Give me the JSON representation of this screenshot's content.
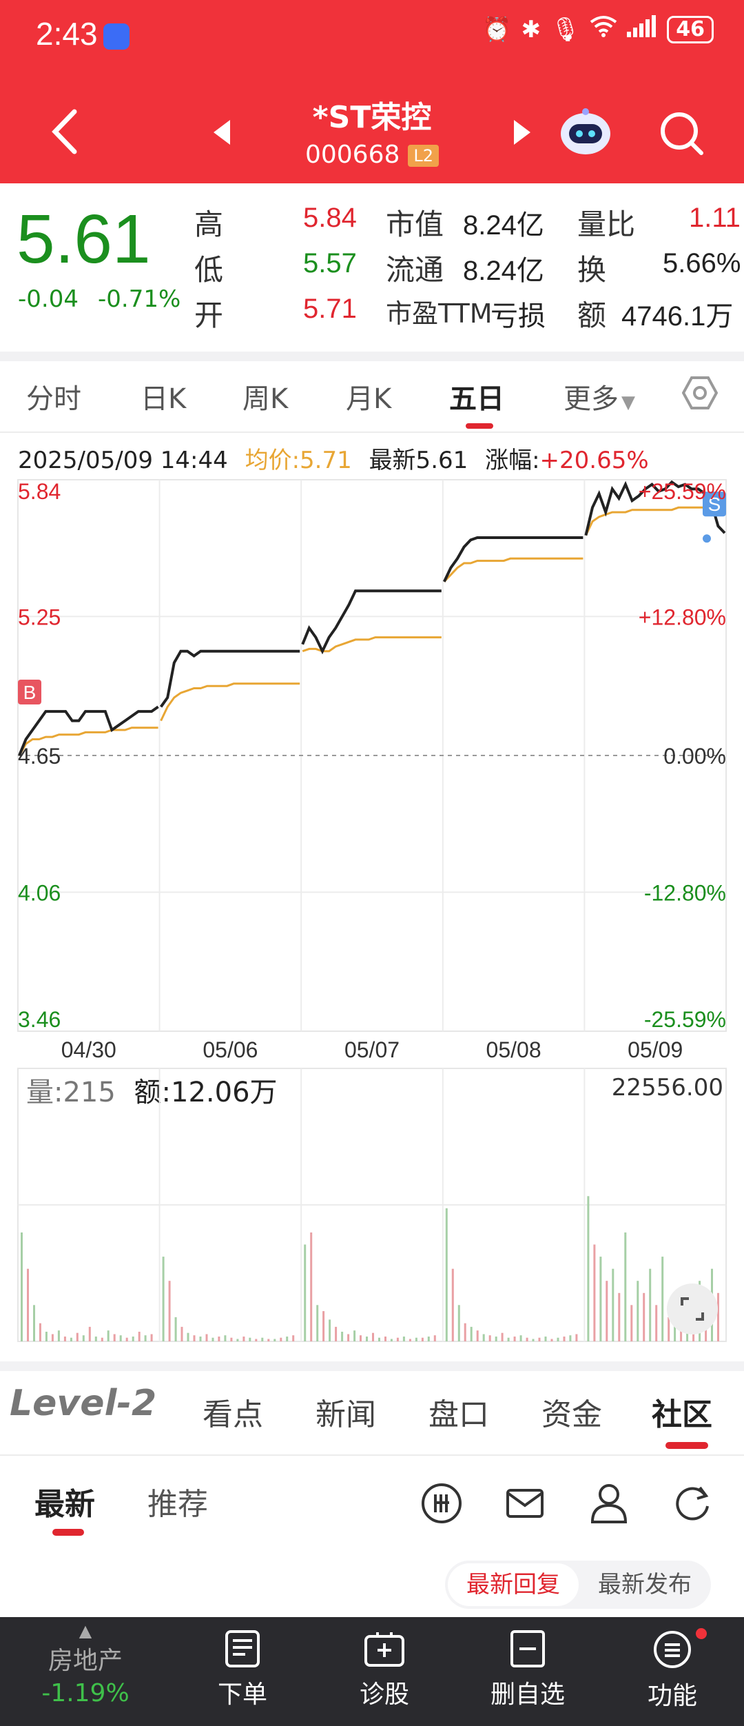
{
  "status": {
    "time": "2:43",
    "battery": "46"
  },
  "header": {
    "stock_name": "*ST荣控",
    "stock_code": "000668",
    "level_badge": "L2"
  },
  "quote": {
    "price": "5.61",
    "change": "-0.04",
    "change_pct": "-0.71%",
    "high_label": "高",
    "high": "5.84",
    "low_label": "低",
    "low": "5.57",
    "open_label": "开",
    "open": "5.71",
    "mktcap_label": "市值",
    "mktcap": "8.24亿",
    "float_label": "流通",
    "float": "8.24亿",
    "pe_label": "市盈TTM",
    "pe": "亏损",
    "vol_ratio_label": "量比",
    "vol_ratio": "1.11",
    "turnover_label": "换",
    "turnover": "5.66%",
    "amount_label": "额",
    "amount": "4746.1万"
  },
  "tabs": [
    {
      "label": "分时"
    },
    {
      "label": "日K"
    },
    {
      "label": "周K"
    },
    {
      "label": "月K"
    },
    {
      "label": "五日"
    },
    {
      "label": "更多"
    }
  ],
  "chart_info": {
    "datetime": "2025/05/09 14:44",
    "avg_label": "均价:5.71",
    "latest_label": "最新5.61",
    "gain_label": "涨幅:",
    "gain_value": "+20.65%"
  },
  "volume_info": {
    "volume": "量:215",
    "amount": "额:12.06万",
    "max_label": "22556.00"
  },
  "chart_data": {
    "type": "line",
    "title": "",
    "x_dates": [
      "04/30",
      "05/06",
      "05/07",
      "05/08",
      "05/09"
    ],
    "y_ticks_left": [
      "5.84",
      "5.25",
      "4.65",
      "4.06",
      "3.46"
    ],
    "y_ticks_right": [
      "+25.59%",
      "+12.80%",
      "0.00%",
      "-12.80%",
      "-25.59%"
    ],
    "ylim": [
      3.46,
      5.84
    ],
    "prev_close": 4.65,
    "series": [
      {
        "name": "",
        "color": "#222222",
        "days": [
          [
            4.65,
            4.72,
            4.76,
            4.8,
            4.84,
            4.84,
            4.84,
            4.84,
            4.8,
            4.8,
            4.84,
            4.84,
            4.84,
            4.84,
            4.76,
            4.78,
            4.8,
            4.82,
            4.84,
            4.84,
            4.84,
            4.86
          ],
          [
            4.86,
            4.9,
            5.05,
            5.1,
            5.1,
            5.08,
            5.1,
            5.1,
            5.1,
            5.1,
            5.1,
            5.1,
            5.1,
            5.1,
            5.1,
            5.1,
            5.1,
            5.1,
            5.1,
            5.1,
            5.1,
            5.1
          ],
          [
            5.13,
            5.2,
            5.16,
            5.1,
            5.16,
            5.2,
            5.25,
            5.3,
            5.36,
            5.36,
            5.36,
            5.36,
            5.36,
            5.36,
            5.36,
            5.36,
            5.36,
            5.36,
            5.36,
            5.36,
            5.36,
            5.36
          ],
          [
            5.4,
            5.46,
            5.5,
            5.55,
            5.58,
            5.59,
            5.59,
            5.59,
            5.59,
            5.59,
            5.59,
            5.59,
            5.59,
            5.59,
            5.59,
            5.59,
            5.59,
            5.59,
            5.59,
            5.59,
            5.59,
            5.59
          ],
          [
            5.6,
            5.72,
            5.78,
            5.7,
            5.8,
            5.76,
            5.82,
            5.75,
            5.77,
            5.8,
            5.82,
            5.79,
            5.8,
            5.83,
            5.81,
            5.82,
            5.8,
            5.8,
            5.78,
            5.74,
            5.64,
            5.61
          ]
        ]
      },
      {
        "name": "",
        "color": "#e8a634",
        "days": [
          [
            4.65,
            4.7,
            4.72,
            4.72,
            4.73,
            4.73,
            4.74,
            4.74,
            4.74,
            4.74,
            4.75,
            4.75,
            4.75,
            4.75,
            4.76,
            4.76,
            4.76,
            4.77,
            4.77,
            4.77,
            4.77,
            4.77
          ],
          [
            4.8,
            4.86,
            4.9,
            4.92,
            4.93,
            4.94,
            4.94,
            4.95,
            4.95,
            4.95,
            4.95,
            4.96,
            4.96,
            4.96,
            4.96,
            4.96,
            4.96,
            4.96,
            4.96,
            4.96,
            4.96,
            4.96
          ],
          [
            5.1,
            5.11,
            5.11,
            5.1,
            5.1,
            5.12,
            5.13,
            5.14,
            5.15,
            5.15,
            5.15,
            5.16,
            5.16,
            5.16,
            5.16,
            5.16,
            5.16,
            5.16,
            5.16,
            5.16,
            5.16,
            5.16
          ],
          [
            5.4,
            5.43,
            5.46,
            5.48,
            5.48,
            5.49,
            5.49,
            5.49,
            5.49,
            5.49,
            5.5,
            5.5,
            5.5,
            5.5,
            5.5,
            5.5,
            5.5,
            5.5,
            5.5,
            5.5,
            5.5,
            5.5
          ],
          [
            5.6,
            5.66,
            5.68,
            5.69,
            5.7,
            5.7,
            5.7,
            5.71,
            5.71,
            5.71,
            5.71,
            5.71,
            5.71,
            5.71,
            5.72,
            5.72,
            5.72,
            5.72,
            5.72,
            5.72,
            5.71,
            5.71
          ]
        ]
      }
    ],
    "markers": [
      {
        "label": "B",
        "color": "#e85560"
      },
      {
        "label": "S",
        "color": "#5b9be6"
      }
    ],
    "volume": {
      "max": 22556.0,
      "values": [
        9000,
        6000,
        3000,
        1500,
        800,
        600,
        900,
        400,
        300,
        700,
        500,
        1200,
        400,
        300,
        900,
        600,
        500,
        300,
        400,
        800,
        500,
        600,
        7000,
        5000,
        2000,
        1200,
        700,
        500,
        400,
        600,
        300,
        400,
        500,
        300,
        200,
        400,
        300,
        200,
        300,
        200,
        200,
        300,
        400,
        500,
        8000,
        9000,
        3000,
        2500,
        1800,
        1200,
        800,
        600,
        900,
        500,
        400,
        700,
        300,
        400,
        200,
        300,
        400,
        200,
        300,
        300,
        400,
        500,
        11000,
        6000,
        3000,
        1500,
        1200,
        900,
        600,
        500,
        400,
        700,
        300,
        400,
        500,
        300,
        200,
        300,
        400,
        200,
        300,
        400,
        500,
        600,
        12000,
        8000,
        7000,
        5000,
        6000,
        4000,
        9000,
        3000,
        5000,
        4000,
        6000,
        3000,
        7000,
        2000,
        3000,
        4000,
        3000,
        2000,
        5000,
        3000,
        6000,
        4000
      ]
    }
  },
  "section_tabs": [
    {
      "label": "Level-2"
    },
    {
      "label": "看点"
    },
    {
      "label": "新闻"
    },
    {
      "label": "盘口"
    },
    {
      "label": "资金"
    },
    {
      "label": "社区"
    }
  ],
  "community": {
    "tabs": [
      {
        "label": "最新"
      },
      {
        "label": "推荐"
      }
    ],
    "filter_latest_reply": "最新回复",
    "filter_latest_post": "最新发布"
  },
  "bottom_bar": {
    "sector_name": "房地产",
    "sector_change": "-1.19%",
    "items": [
      {
        "label": "下单"
      },
      {
        "label": "诊股"
      },
      {
        "label": "删自选"
      },
      {
        "label": "功能"
      }
    ]
  },
  "colors": {
    "brand": "#f0323a",
    "up": "#e0262f",
    "down": "#1b8f1e",
    "avg": "#e8a634"
  }
}
